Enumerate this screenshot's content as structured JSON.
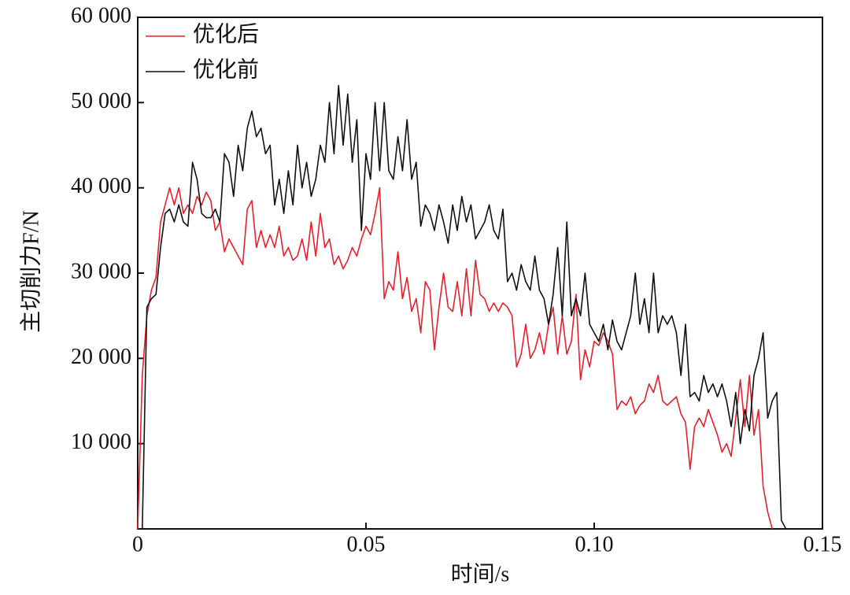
{
  "chart_data": {
    "type": "line",
    "xlabel": "时间/s",
    "ylabel": "主切削力F/N",
    "xlim": [
      0,
      0.15
    ],
    "ylim": [
      0,
      60000
    ],
    "xticks": [
      0,
      0.05,
      {
        "value": 0.1,
        "label": "0.10"
      },
      0.15
    ],
    "yticks": [
      {
        "value": 10000,
        "label": "10 000"
      },
      {
        "value": 20000,
        "label": "20 000"
      },
      {
        "value": 30000,
        "label": "30 000"
      },
      {
        "value": 40000,
        "label": "40 000"
      },
      {
        "value": 50000,
        "label": "50 000"
      },
      {
        "value": 60000,
        "label": "60 000"
      }
    ],
    "legend": "upper left",
    "x": [
      0,
      0.001,
      0.002,
      0.003,
      0.004,
      0.005,
      0.006,
      0.007,
      0.008,
      0.009,
      0.01,
      0.011,
      0.012,
      0.013,
      0.014,
      0.015,
      0.016,
      0.017,
      0.018,
      0.019,
      0.02,
      0.021,
      0.022,
      0.023,
      0.024,
      0.025,
      0.026,
      0.027,
      0.028,
      0.029,
      0.03,
      0.031,
      0.032,
      0.033,
      0.034,
      0.035,
      0.036,
      0.037,
      0.038,
      0.039,
      0.04,
      0.041,
      0.042,
      0.043,
      0.044,
      0.045,
      0.046,
      0.047,
      0.048,
      0.049,
      0.05,
      0.051,
      0.052,
      0.053,
      0.054,
      0.055,
      0.056,
      0.057,
      0.058,
      0.059,
      0.06,
      0.061,
      0.062,
      0.063,
      0.064,
      0.065,
      0.066,
      0.067,
      0.068,
      0.069,
      0.07,
      0.071,
      0.072,
      0.073,
      0.074,
      0.075,
      0.076,
      0.077,
      0.078,
      0.079,
      0.08,
      0.081,
      0.082,
      0.083,
      0.084,
      0.085,
      0.086,
      0.087,
      0.088,
      0.089,
      0.09,
      0.091,
      0.092,
      0.093,
      0.094,
      0.095,
      0.096,
      0.097,
      0.098,
      0.099,
      0.1,
      0.101,
      0.102,
      0.103,
      0.104,
      0.105,
      0.106,
      0.107,
      0.108,
      0.109,
      0.11,
      0.111,
      0.112,
      0.113,
      0.114,
      0.115,
      0.116,
      0.117,
      0.118,
      0.119,
      0.12,
      0.121,
      0.122,
      0.123,
      0.124,
      0.125,
      0.126,
      0.127,
      0.128,
      0.129,
      0.13,
      0.131,
      0.132,
      0.133,
      0.134,
      0.135,
      0.136,
      0.137,
      0.138,
      0.139,
      0.14,
      0.141,
      0.142
    ],
    "series": [
      {
        "name": "优化后",
        "color": "#e8202a",
        "values": [
          0,
          18000,
          25000,
          28000,
          29500,
          36000,
          38000,
          40000,
          38000,
          40000,
          37000,
          38000,
          37000,
          39000,
          38000,
          39500,
          38500,
          35000,
          36000,
          32500,
          34000,
          33000,
          32000,
          31000,
          37500,
          38500,
          33000,
          35000,
          33000,
          34500,
          33000,
          35500,
          32000,
          33000,
          31500,
          32000,
          34000,
          31500,
          36000,
          32000,
          37000,
          33000,
          34000,
          31000,
          32000,
          30500,
          31500,
          33000,
          32000,
          34000,
          35500,
          34500,
          37000,
          40000,
          27000,
          29000,
          28000,
          32500,
          27000,
          29500,
          25500,
          27000,
          23000,
          29000,
          28000,
          21000,
          26000,
          30000,
          26000,
          25500,
          29000,
          25000,
          30500,
          25000,
          31500,
          27500,
          27000,
          25500,
          26500,
          25500,
          26500,
          26000,
          25000,
          19000,
          20500,
          24000,
          20000,
          21000,
          23000,
          20500,
          24000,
          26000,
          20500,
          25000,
          20500,
          22000,
          27500,
          17500,
          21000,
          19000,
          22000,
          21500,
          23000,
          22000,
          20500,
          14000,
          15000,
          14500,
          15500,
          13500,
          14500,
          15000,
          17000,
          16000,
          18000,
          15000,
          14500,
          15000,
          15500,
          13500,
          12500,
          7000,
          12000,
          13000,
          12000,
          14000,
          12500,
          11000,
          9000,
          10000,
          8500,
          13000,
          17500,
          12000,
          18000,
          11000,
          14000,
          5000,
          2000,
          0,
          null,
          null,
          null
        ]
      },
      {
        "name": "优化前",
        "color": "#111111",
        "values": [
          null,
          0,
          26000,
          27000,
          27500,
          33000,
          37000,
          37500,
          36000,
          38000,
          36000,
          35500,
          43000,
          41000,
          37000,
          36500,
          36500,
          37500,
          36000,
          44000,
          43000,
          39000,
          45000,
          42000,
          47000,
          49000,
          46000,
          47000,
          44000,
          45000,
          38000,
          41000,
          37000,
          42000,
          38000,
          45000,
          40000,
          43000,
          39000,
          41000,
          45000,
          43000,
          50000,
          44000,
          52000,
          45000,
          51000,
          43000,
          48000,
          35000,
          44000,
          41000,
          50000,
          42000,
          50000,
          42000,
          41000,
          46000,
          42000,
          48000,
          41000,
          43000,
          35500,
          38000,
          37000,
          35000,
          38000,
          36000,
          33500,
          38000,
          35000,
          39000,
          36000,
          38000,
          34000,
          35000,
          36000,
          38000,
          35000,
          34000,
          37500,
          29000,
          30000,
          28000,
          31000,
          29000,
          28000,
          32000,
          28000,
          27000,
          24000,
          27500,
          33000,
          25000,
          36000,
          25000,
          27000,
          25000,
          30000,
          24000,
          23000,
          22000,
          24000,
          21000,
          24500,
          22000,
          21000,
          23000,
          25000,
          30000,
          24000,
          27000,
          23000,
          30000,
          23000,
          25000,
          24000,
          25000,
          23000,
          18000,
          24000,
          15500,
          16000,
          15000,
          18000,
          16000,
          17000,
          15500,
          17000,
          15000,
          12000,
          16000,
          10000,
          14000,
          11500,
          18000,
          20000,
          23000,
          13000,
          15000,
          16000,
          1000,
          0
        ]
      }
    ]
  }
}
